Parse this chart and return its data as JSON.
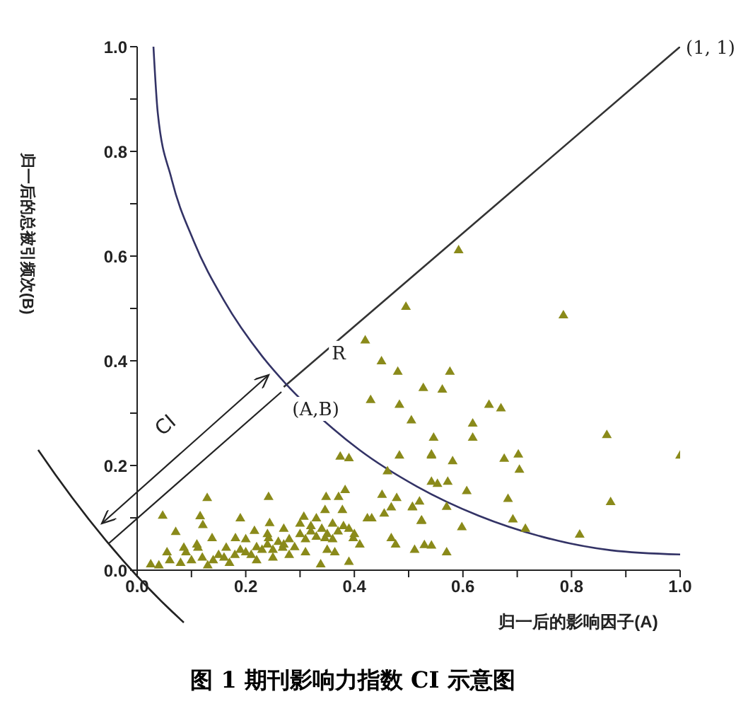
{
  "chart_data": {
    "type": "scatter",
    "title": "图 1 期刊影响力指数 CI 示意图",
    "xlabel": "归一后的影响因子(A)",
    "ylabel": "归一后的总被引频次(B)",
    "xlim": [
      0,
      1
    ],
    "ylim": [
      0,
      1
    ],
    "xticks": [
      {
        "value": 0,
        "label": "0.0"
      },
      {
        "value": 0.1,
        "label": null
      },
      {
        "value": 0.2,
        "label": "0.2"
      },
      {
        "value": 0.3,
        "label": null
      },
      {
        "value": 0.4,
        "label": "0.4"
      },
      {
        "value": 0.5,
        "label": null
      },
      {
        "value": 0.6,
        "label": "0.6"
      },
      {
        "value": 0.7,
        "label": null
      },
      {
        "value": 0.8,
        "label": "0.8"
      },
      {
        "value": 0.9,
        "label": null
      },
      {
        "value": 1,
        "label": "1.0"
      }
    ],
    "yticks": [
      {
        "value": 0,
        "label": "0.0"
      },
      {
        "value": 0.1,
        "label": null
      },
      {
        "value": 0.2,
        "label": "0.2"
      },
      {
        "value": 0.3,
        "label": null
      },
      {
        "value": 0.4,
        "label": "0.4"
      },
      {
        "value": 0.5,
        "label": null
      },
      {
        "value": 0.6,
        "label": "0.6"
      },
      {
        "value": 0.7,
        "label": null
      },
      {
        "value": 0.8,
        "label": "0.8"
      },
      {
        "value": 0.9,
        "label": null
      },
      {
        "value": 1,
        "label": "1.0"
      }
    ],
    "grid": false,
    "marker": "triangle",
    "series": [
      {
        "type": "line",
        "color": "#333333",
        "marker": "none",
        "x": [
          0.27,
          1
        ],
        "values": [
          0.35,
          1
        ]
      },
      {
        "type": "line",
        "color": "#333366",
        "marker": "none",
        "x": [
          0.03,
          0.038,
          0.063,
          0.104,
          0.16,
          0.23,
          0.273,
          0.36,
          0.409,
          0.515,
          0.629,
          0.749,
          0.873,
          1
        ],
        "values": [
          1,
          0.873,
          0.749,
          0.629,
          0.515,
          0.409,
          0.357,
          0.271,
          0.23,
          0.16,
          0.104,
          0.063,
          0.038,
          0.03
        ]
      },
      {
        "color": "#8a8a1a",
        "x": [
          0.785,
          0.576,
          0.527,
          0.562,
          0.648,
          0.67,
          0.618,
          0.546,
          0.618,
          0.505,
          0.542,
          0.581,
          0.676,
          0.702,
          0.704,
          0.865,
          1,
          0.542,
          0.553,
          0.572,
          0.607,
          0.683,
          0.872,
          0.507,
          0.52,
          0.57,
          0.523,
          0.692,
          0.598,
          0.715,
          0.815,
          0.511,
          0.529,
          0.542,
          0.57,
          0.43,
          0.483,
          0.374,
          0.39,
          0.483,
          0.542,
          0.461,
          0.129,
          0.242,
          0.348,
          0.371,
          0.383,
          0.451,
          0.478,
          0.047,
          0.116,
          0.19,
          0.244,
          0.307,
          0.346,
          0.378,
          0.424,
          0.432,
          0.455,
          0.468,
          0.507,
          0.524,
          0.071,
          0.121,
          0.138,
          0.181,
          0.216,
          0.32,
          0.39,
          0.398,
          0.468,
          0.476,
          0.055,
          0.086,
          0.112,
          0.164,
          0.242,
          0.268,
          0.346,
          0.364,
          0.39,
          0.338,
          0.025,
          0.04,
          0.06,
          0.08,
          0.1,
          0.12,
          0.14,
          0.15,
          0.16,
          0.18,
          0.19,
          0.2,
          0.21,
          0.22,
          0.23,
          0.24,
          0.25,
          0.26,
          0.27,
          0.28,
          0.29,
          0.3,
          0.31,
          0.32,
          0.33,
          0.34,
          0.35,
          0.36,
          0.37,
          0.38,
          0.4,
          0.41,
          0.13,
          0.17,
          0.22,
          0.25,
          0.28,
          0.31,
          0.35,
          0.09,
          0.11,
          0.2,
          0.24,
          0.27,
          0.3,
          0.33,
          0.36,
          0.495,
          0.592,
          0.42,
          0.48,
          0.45
        ],
        "values": [
          0.488,
          0.38,
          0.349,
          0.346,
          0.317,
          0.31,
          0.281,
          0.254,
          0.254,
          0.287,
          0.222,
          0.209,
          0.214,
          0.222,
          0.193,
          0.259,
          0.22,
          0.17,
          0.166,
          0.17,
          0.152,
          0.137,
          0.131,
          0.122,
          0.132,
          0.122,
          0.095,
          0.098,
          0.083,
          0.08,
          0.069,
          0.04,
          0.049,
          0.048,
          0.035,
          0.326,
          0.317,
          0.218,
          0.215,
          0.22,
          0.22,
          0.19,
          0.139,
          0.141,
          0.141,
          0.141,
          0.154,
          0.145,
          0.139,
          0.105,
          0.104,
          0.1,
          0.091,
          0.103,
          0.116,
          0.116,
          0.1,
          0.1,
          0.109,
          0.121,
          0.121,
          0.096,
          0.074,
          0.087,
          0.062,
          0.062,
          0.076,
          0.085,
          0.08,
          0.062,
          0.062,
          0.05,
          0.035,
          0.044,
          0.044,
          0.044,
          0.062,
          0.044,
          0.062,
          0.035,
          0.017,
          0.012,
          0.012,
          0.01,
          0.02,
          0.015,
          0.02,
          0.025,
          0.02,
          0.03,
          0.025,
          0.03,
          0.04,
          0.035,
          0.03,
          0.045,
          0.04,
          0.05,
          0.04,
          0.055,
          0.05,
          0.06,
          0.045,
          0.07,
          0.06,
          0.075,
          0.065,
          0.08,
          0.07,
          0.09,
          0.075,
          0.085,
          0.07,
          0.05,
          0.01,
          0.015,
          0.02,
          0.025,
          0.03,
          0.035,
          0.04,
          0.035,
          0.05,
          0.06,
          0.07,
          0.08,
          0.09,
          0.1,
          0.06,
          0.504,
          0.612,
          0.44,
          0.38,
          0.4
        ]
      }
    ],
    "annotations": [
      {
        "text": "(1, 1)",
        "x": 1,
        "y": 1
      },
      {
        "text": "(A,B)",
        "x": 0.27,
        "y": 0.35
      },
      {
        "text": "R",
        "x": 0.4,
        "y": 0.43
      },
      "CI"
    ]
  }
}
